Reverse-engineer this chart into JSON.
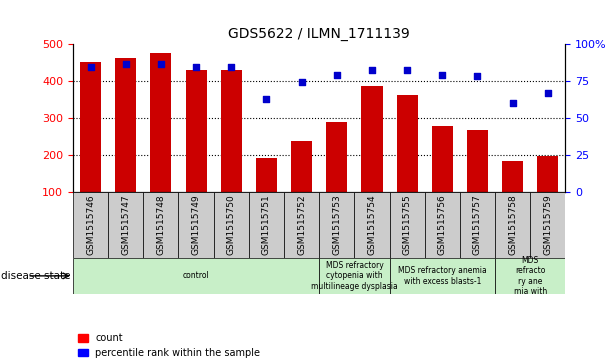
{
  "title": "GDS5622 / ILMN_1711139",
  "samples": [
    "GSM1515746",
    "GSM1515747",
    "GSM1515748",
    "GSM1515749",
    "GSM1515750",
    "GSM1515751",
    "GSM1515752",
    "GSM1515753",
    "GSM1515754",
    "GSM1515755",
    "GSM1515756",
    "GSM1515757",
    "GSM1515758",
    "GSM1515759"
  ],
  "counts": [
    450,
    462,
    475,
    428,
    430,
    192,
    238,
    288,
    387,
    362,
    278,
    268,
    184,
    197
  ],
  "percentile_ranks": [
    84,
    86,
    86,
    84,
    84,
    63,
    74,
    79,
    82,
    82,
    79,
    78,
    60,
    67
  ],
  "ylim_left": [
    100,
    500
  ],
  "ylim_right": [
    0,
    100
  ],
  "yticks_left": [
    100,
    200,
    300,
    400,
    500
  ],
  "yticks_right": [
    0,
    25,
    50,
    75,
    100
  ],
  "disease_groups": [
    {
      "label": "control",
      "start": 0,
      "end": 7,
      "color": "#c8efc8"
    },
    {
      "label": "MDS refractory\ncytopenia with\nmultilineage dysplasia",
      "start": 7,
      "end": 9,
      "color": "#c8efc8"
    },
    {
      "label": "MDS refractory anemia\nwith excess blasts-1",
      "start": 9,
      "end": 12,
      "color": "#c8efc8"
    },
    {
      "label": "MDS\nrefracto\nry ane\nmia with",
      "start": 12,
      "end": 14,
      "color": "#c8efc8"
    }
  ],
  "bar_color": "#cc0000",
  "dot_color": "#0000cc",
  "xtick_bg": "#cccccc",
  "grid_color": "#000000",
  "grid_lines": [
    200,
    300,
    400
  ],
  "disease_state_label": "disease state"
}
